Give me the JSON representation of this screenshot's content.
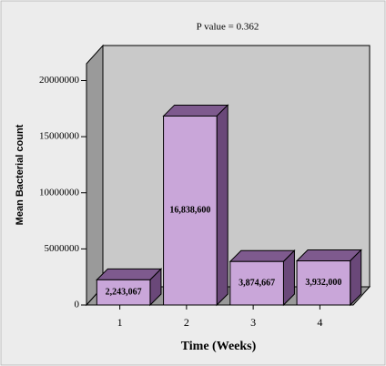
{
  "chart_data": {
    "type": "bar3d",
    "title": "P value = 0.362",
    "x_label": "Time (Weeks)",
    "y_label": "Mean Bacterial count",
    "categories": [
      "1",
      "2",
      "3",
      "4"
    ],
    "values": [
      2243067,
      16838600,
      3874667,
      3932000
    ],
    "value_labels": [
      "2,243,067",
      "16,838,600",
      "3,874,667",
      "3,932,000"
    ],
    "color": "#c9a6d9",
    "ylim": [
      0,
      21500000
    ],
    "yticks": [
      0,
      5000000,
      10000000,
      15000000,
      20000000
    ]
  }
}
